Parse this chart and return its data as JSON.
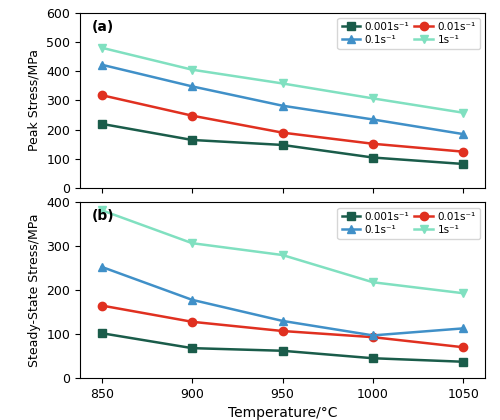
{
  "temperatures": [
    850,
    900,
    950,
    1000,
    1050
  ],
  "peak_stress": {
    "0.001": [
      220,
      165,
      148,
      105,
      83
    ],
    "0.01": [
      318,
      248,
      190,
      152,
      125
    ],
    "0.1": [
      422,
      348,
      282,
      235,
      185
    ],
    "1": [
      480,
      405,
      358,
      307,
      258
    ]
  },
  "steady_stress": {
    "0.001": [
      102,
      68,
      62,
      45,
      37
    ],
    "0.01": [
      165,
      128,
      107,
      93,
      70
    ],
    "0.1": [
      253,
      178,
      130,
      97,
      113
    ],
    "1": [
      382,
      307,
      280,
      218,
      193
    ]
  },
  "colors": {
    "0.001": "#1a5c4a",
    "0.01": "#e03020",
    "0.1": "#4090c8",
    "1": "#80e0c0"
  },
  "markers": {
    "0.001": "s",
    "0.01": "o",
    "0.1": "^",
    "1": "v"
  },
  "labels": {
    "0.001": "0.001s⁻¹",
    "0.01": "0.01s⁻¹",
    "0.1": "0.1s⁻¹",
    "1": "1s⁻¹"
  },
  "panel_a_label": "(a)",
  "panel_b_label": "(b)",
  "ylabel_a": "Peak Stress/MPa",
  "ylabel_b": "Steady-State Stress/MPa",
  "xlabel": "Temperature/°C",
  "ylim_a": [
    0,
    600
  ],
  "ylim_b": [
    0,
    400
  ],
  "yticks_a": [
    0,
    100,
    200,
    300,
    400,
    500,
    600
  ],
  "yticks_b": [
    0,
    100,
    200,
    300,
    400
  ],
  "background_color": "#ffffff",
  "marker_size": 6,
  "linewidth": 1.8
}
